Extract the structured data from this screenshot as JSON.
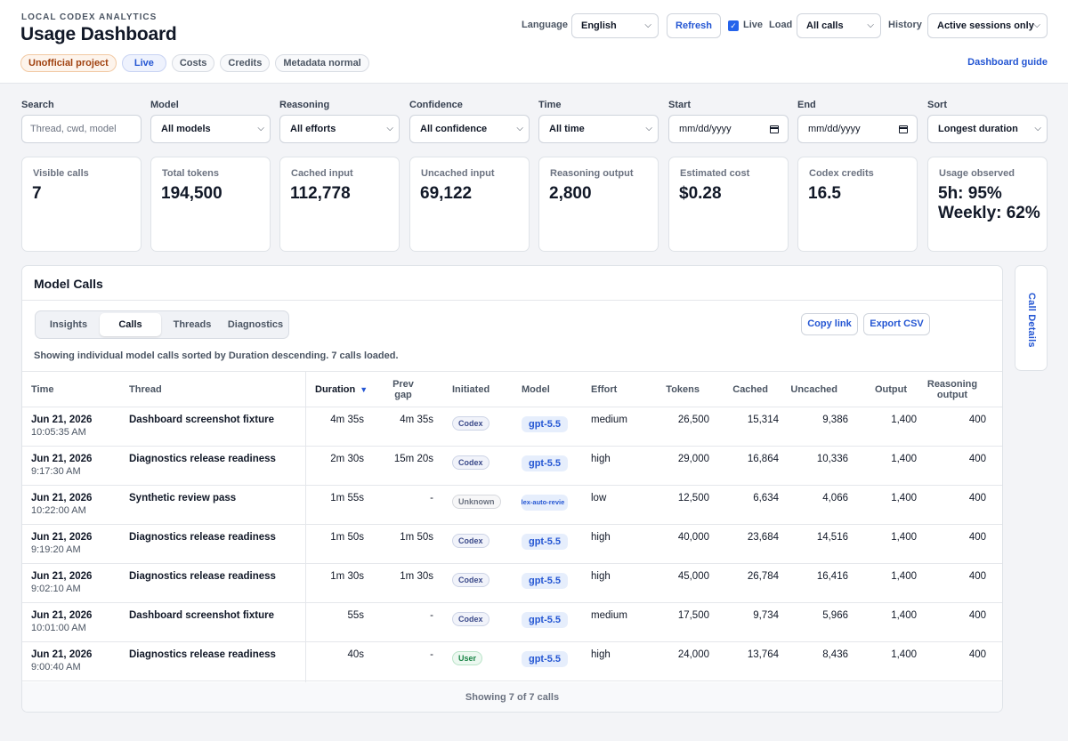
{
  "header": {
    "eyebrow": "LOCAL CODEX ANALYTICS",
    "title": "Usage Dashboard",
    "badges": {
      "unofficial": "Unofficial project",
      "live": "Live",
      "costs": "Costs",
      "credits": "Credits",
      "metadata": "Metadata normal"
    },
    "language_label": "Language",
    "language_value": "English",
    "refresh_label": "Refresh",
    "live_label": "Live",
    "live_checked": true,
    "load_label": "Load",
    "load_value": "All calls",
    "history_label": "History",
    "history_value": "Active sessions only",
    "guide_label": "Dashboard guide"
  },
  "filters": {
    "search_label": "Search",
    "search_placeholder": "Thread, cwd, model",
    "model_label": "Model",
    "model_value": "All models",
    "reasoning_label": "Reasoning",
    "reasoning_value": "All efforts",
    "confidence_label": "Confidence",
    "confidence_value": "All confidence",
    "time_label": "Time",
    "time_value": "All time",
    "start_label": "Start",
    "start_placeholder": "mm/dd/yyyy",
    "end_label": "End",
    "end_placeholder": "mm/dd/yyyy",
    "sort_label": "Sort",
    "sort_value": "Longest duration"
  },
  "stats": [
    {
      "label": "Visible calls",
      "value": "7"
    },
    {
      "label": "Total tokens",
      "value": "194,500"
    },
    {
      "label": "Cached input",
      "value": "112,778"
    },
    {
      "label": "Uncached input",
      "value": "69,122"
    },
    {
      "label": "Reasoning output",
      "value": "2,800"
    },
    {
      "label": "Estimated cost",
      "value": "$0.28"
    },
    {
      "label": "Codex credits",
      "value": "16.5"
    },
    {
      "label": "Usage observed",
      "value": "5h: 95% Weekly: 62%"
    }
  ],
  "panel": {
    "title": "Model Calls",
    "tabs": [
      "Insights",
      "Calls",
      "Threads",
      "Diagnostics"
    ],
    "active_tab": "Calls",
    "copy_link": "Copy link",
    "export_csv": "Export CSV",
    "summary": "Showing individual model calls sorted by Duration descending. 7 calls loaded.",
    "footer": "Showing 7 of 7 calls",
    "side_tab": "Call Details"
  },
  "table": {
    "columns": {
      "time": "Time",
      "thread": "Thread",
      "duration": "Duration",
      "sort_indicator": "▼",
      "prev_gap_1": "Prev",
      "prev_gap_2": "gap",
      "initiated": "Initiated",
      "model": "Model",
      "effort": "Effort",
      "tokens": "Tokens",
      "cached": "Cached",
      "uncached": "Uncached",
      "output": "Output",
      "reasoning_1": "Reasoning",
      "reasoning_2": "output"
    },
    "rows": [
      {
        "date": "Jun 21, 2026",
        "time": "10:05:35 AM",
        "thread": "Dashboard screenshot fixture",
        "duration": "4m 35s",
        "prev_gap": "4m 35s",
        "initiated": "Codex",
        "initiated_kind": "codex",
        "model": "gpt-5.5",
        "effort": "medium",
        "tokens": "26,500",
        "cached": "15,314",
        "uncached": "9,386",
        "output": "1,400",
        "reasoning": "400"
      },
      {
        "date": "Jun 21, 2026",
        "time": "9:17:30 AM",
        "thread": "Diagnostics release readiness",
        "duration": "2m 30s",
        "prev_gap": "15m 20s",
        "initiated": "Codex",
        "initiated_kind": "codex",
        "model": "gpt-5.5",
        "effort": "high",
        "tokens": "29,000",
        "cached": "16,864",
        "uncached": "10,336",
        "output": "1,400",
        "reasoning": "400"
      },
      {
        "date": "Jun 21, 2026",
        "time": "10:22:00 AM",
        "thread": "Synthetic review pass",
        "duration": "1m 55s",
        "prev_gap": "-",
        "initiated": "Unknown",
        "initiated_kind": "unknown",
        "model": "dex-auto-revie",
        "effort": "low",
        "tokens": "12,500",
        "cached": "6,634",
        "uncached": "4,066",
        "output": "1,400",
        "reasoning": "400"
      },
      {
        "date": "Jun 21, 2026",
        "time": "9:19:20 AM",
        "thread": "Diagnostics release readiness",
        "duration": "1m 50s",
        "prev_gap": "1m 50s",
        "initiated": "Codex",
        "initiated_kind": "codex",
        "model": "gpt-5.5",
        "effort": "high",
        "tokens": "40,000",
        "cached": "23,684",
        "uncached": "14,516",
        "output": "1,400",
        "reasoning": "400"
      },
      {
        "date": "Jun 21, 2026",
        "time": "9:02:10 AM",
        "thread": "Diagnostics release readiness",
        "duration": "1m 30s",
        "prev_gap": "1m 30s",
        "initiated": "Codex",
        "initiated_kind": "codex",
        "model": "gpt-5.5",
        "effort": "high",
        "tokens": "45,000",
        "cached": "26,784",
        "uncached": "16,416",
        "output": "1,400",
        "reasoning": "400"
      },
      {
        "date": "Jun 21, 2026",
        "time": "10:01:00 AM",
        "thread": "Dashboard screenshot fixture",
        "duration": "55s",
        "prev_gap": "-",
        "initiated": "Codex",
        "initiated_kind": "codex",
        "model": "gpt-5.5",
        "effort": "medium",
        "tokens": "17,500",
        "cached": "9,734",
        "uncached": "5,966",
        "output": "1,400",
        "reasoning": "400"
      },
      {
        "date": "Jun 21, 2026",
        "time": "9:00:40 AM",
        "thread": "Diagnostics release readiness",
        "duration": "40s",
        "prev_gap": "-",
        "initiated": "User",
        "initiated_kind": "user",
        "model": "gpt-5.5",
        "effort": "high",
        "tokens": "24,000",
        "cached": "13,764",
        "uncached": "8,436",
        "output": "1,400",
        "reasoning": "400"
      }
    ]
  },
  "colors": {
    "accent": "#2456d3",
    "background": "#f3f4f7",
    "warning": "#a0410f",
    "user_badge": "#1a8446"
  }
}
